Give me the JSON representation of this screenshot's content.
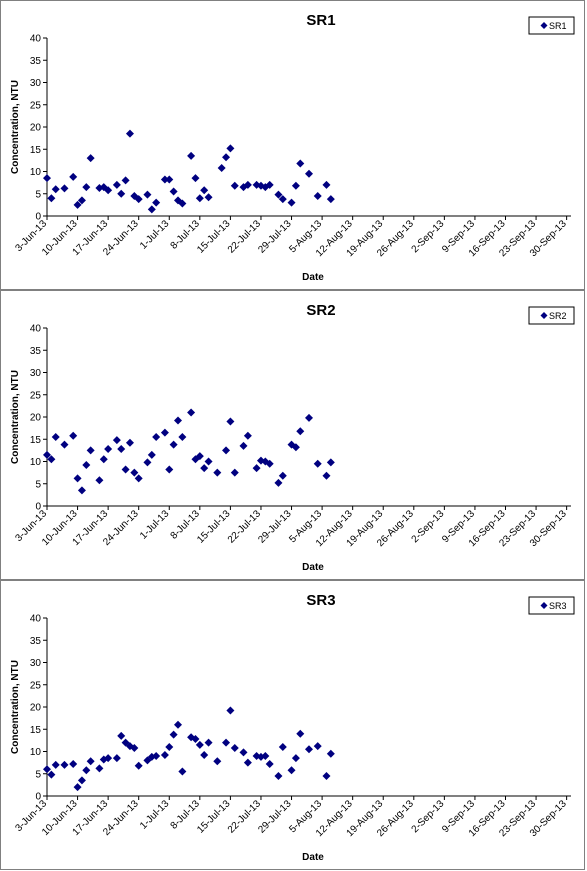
{
  "chart_data": [
    {
      "type": "scatter",
      "title": "SR1",
      "xlabel": "Date",
      "ylabel": "Concentration, NTU",
      "ylim": [
        0,
        40
      ],
      "yticks": [
        0,
        5,
        10,
        15,
        20,
        25,
        30,
        35,
        40
      ],
      "xlim": [
        "2013-06-03",
        "2013-10-01"
      ],
      "xtick_labels": [
        "3-Jun-13",
        "10-Jun-13",
        "17-Jun-13",
        "24-Jun-13",
        "1-Jul-13",
        "8-Jul-13",
        "15-Jul-13",
        "22-Jul-13",
        "29-Jul-13",
        "5-Aug-13",
        "12-Aug-13",
        "19-Aug-13",
        "26-Aug-13",
        "2-Sep-13",
        "9-Sep-13",
        "16-Sep-13",
        "23-Sep-13",
        "30-Sep-13"
      ],
      "legend_position": "top-right",
      "marker_color": "#000080",
      "series": [
        {
          "name": "SR1",
          "points": [
            [
              "2013-06-03",
              8.5
            ],
            [
              "2013-06-04",
              4.0
            ],
            [
              "2013-06-05",
              6.0
            ],
            [
              "2013-06-07",
              6.2
            ],
            [
              "2013-06-09",
              8.8
            ],
            [
              "2013-06-10",
              2.5
            ],
            [
              "2013-06-11",
              3.5
            ],
            [
              "2013-06-12",
              6.5
            ],
            [
              "2013-06-13",
              13.0
            ],
            [
              "2013-06-15",
              6.3
            ],
            [
              "2013-06-16",
              6.5
            ],
            [
              "2013-06-17",
              5.8
            ],
            [
              "2013-06-19",
              7.0
            ],
            [
              "2013-06-20",
              5.0
            ],
            [
              "2013-06-21",
              8.0
            ],
            [
              "2013-06-22",
              18.5
            ],
            [
              "2013-06-23",
              4.5
            ],
            [
              "2013-06-24",
              3.8
            ],
            [
              "2013-06-26",
              4.8
            ],
            [
              "2013-06-27",
              1.5
            ],
            [
              "2013-06-28",
              3.0
            ],
            [
              "2013-06-30",
              8.2
            ],
            [
              "2013-07-01",
              8.2
            ],
            [
              "2013-07-02",
              5.5
            ],
            [
              "2013-07-03",
              3.5
            ],
            [
              "2013-07-04",
              2.8
            ],
            [
              "2013-07-06",
              13.5
            ],
            [
              "2013-07-07",
              8.5
            ],
            [
              "2013-07-08",
              4.0
            ],
            [
              "2013-07-09",
              5.8
            ],
            [
              "2013-07-10",
              4.2
            ],
            [
              "2013-07-13",
              10.8
            ],
            [
              "2013-07-14",
              13.2
            ],
            [
              "2013-07-15",
              15.2
            ],
            [
              "2013-07-16",
              6.8
            ],
            [
              "2013-07-18",
              6.5
            ],
            [
              "2013-07-19",
              7.0
            ],
            [
              "2013-07-21",
              7.0
            ],
            [
              "2013-07-22",
              6.8
            ],
            [
              "2013-07-23",
              6.5
            ],
            [
              "2013-07-24",
              7.0
            ],
            [
              "2013-07-26",
              4.8
            ],
            [
              "2013-07-27",
              3.8
            ],
            [
              "2013-07-29",
              3.0
            ],
            [
              "2013-07-30",
              6.8
            ],
            [
              "2013-07-31",
              11.8
            ],
            [
              "2013-08-02",
              9.5
            ],
            [
              "2013-08-04",
              4.5
            ],
            [
              "2013-08-06",
              7.0
            ],
            [
              "2013-08-07",
              3.8
            ]
          ]
        }
      ]
    },
    {
      "type": "scatter",
      "title": "SR2",
      "xlabel": "Date",
      "ylabel": "Concentration, NTU",
      "ylim": [
        0,
        40
      ],
      "yticks": [
        0,
        5,
        10,
        15,
        20,
        25,
        30,
        35,
        40
      ],
      "xlim": [
        "2013-06-03",
        "2013-10-01"
      ],
      "xtick_labels": [
        "3-Jun-13",
        "10-Jun-13",
        "17-Jun-13",
        "24-Jun-13",
        "1-Jul-13",
        "8-Jul-13",
        "15-Jul-13",
        "22-Jul-13",
        "29-Jul-13",
        "5-Aug-13",
        "12-Aug-13",
        "19-Aug-13",
        "26-Aug-13",
        "2-Sep-13",
        "9-Sep-13",
        "16-Sep-13",
        "23-Sep-13",
        "30-Sep-13"
      ],
      "legend_position": "top-right",
      "marker_color": "#000080",
      "series": [
        {
          "name": "SR2",
          "points": [
            [
              "2013-06-03",
              11.5
            ],
            [
              "2013-06-04",
              10.5
            ],
            [
              "2013-06-05",
              15.5
            ],
            [
              "2013-06-07",
              13.8
            ],
            [
              "2013-06-09",
              15.8
            ],
            [
              "2013-06-10",
              6.2
            ],
            [
              "2013-06-11",
              3.5
            ],
            [
              "2013-06-12",
              9.2
            ],
            [
              "2013-06-13",
              12.5
            ],
            [
              "2013-06-15",
              5.8
            ],
            [
              "2013-06-16",
              10.5
            ],
            [
              "2013-06-17",
              12.8
            ],
            [
              "2013-06-19",
              14.8
            ],
            [
              "2013-06-20",
              12.8
            ],
            [
              "2013-06-21",
              8.2
            ],
            [
              "2013-06-22",
              14.2
            ],
            [
              "2013-06-23",
              7.5
            ],
            [
              "2013-06-24",
              6.2
            ],
            [
              "2013-06-26",
              9.8
            ],
            [
              "2013-06-27",
              11.5
            ],
            [
              "2013-06-28",
              15.5
            ],
            [
              "2013-06-30",
              16.5
            ],
            [
              "2013-07-01",
              8.2
            ],
            [
              "2013-07-02",
              13.8
            ],
            [
              "2013-07-03",
              19.2
            ],
            [
              "2013-07-04",
              15.5
            ],
            [
              "2013-07-06",
              21.0
            ],
            [
              "2013-07-07",
              10.5
            ],
            [
              "2013-07-08",
              11.2
            ],
            [
              "2013-07-09",
              8.5
            ],
            [
              "2013-07-10",
              10.0
            ],
            [
              "2013-07-12",
              7.5
            ],
            [
              "2013-07-14",
              12.5
            ],
            [
              "2013-07-15",
              19.0
            ],
            [
              "2013-07-16",
              7.5
            ],
            [
              "2013-07-18",
              13.5
            ],
            [
              "2013-07-19",
              15.8
            ],
            [
              "2013-07-21",
              8.5
            ],
            [
              "2013-07-22",
              10.2
            ],
            [
              "2013-07-23",
              10.0
            ],
            [
              "2013-07-24",
              9.5
            ],
            [
              "2013-07-26",
              5.2
            ],
            [
              "2013-07-27",
              6.8
            ],
            [
              "2013-07-29",
              13.8
            ],
            [
              "2013-07-30",
              13.2
            ],
            [
              "2013-07-31",
              16.8
            ],
            [
              "2013-08-02",
              19.8
            ],
            [
              "2013-08-04",
              9.5
            ],
            [
              "2013-08-06",
              6.8
            ],
            [
              "2013-08-07",
              9.8
            ]
          ]
        }
      ]
    },
    {
      "type": "scatter",
      "title": "SR3",
      "xlabel": "Date",
      "ylabel": "Concentration, NTU",
      "ylim": [
        0,
        40
      ],
      "yticks": [
        0,
        5,
        10,
        15,
        20,
        25,
        30,
        35,
        40
      ],
      "xlim": [
        "2013-06-03",
        "2013-10-01"
      ],
      "xtick_labels": [
        "3-Jun-13",
        "10-Jun-13",
        "17-Jun-13",
        "24-Jun-13",
        "1-Jul-13",
        "8-Jul-13",
        "15-Jul-13",
        "22-Jul-13",
        "29-Jul-13",
        "5-Aug-13",
        "12-Aug-13",
        "19-Aug-13",
        "26-Aug-13",
        "2-Sep-13",
        "9-Sep-13",
        "16-Sep-13",
        "23-Sep-13",
        "30-Sep-13"
      ],
      "legend_position": "top-right",
      "marker_color": "#000080",
      "series": [
        {
          "name": "SR3",
          "points": [
            [
              "2013-06-03",
              6.0
            ],
            [
              "2013-06-04",
              4.8
            ],
            [
              "2013-06-05",
              7.0
            ],
            [
              "2013-06-07",
              7.0
            ],
            [
              "2013-06-09",
              7.2
            ],
            [
              "2013-06-10",
              2.0
            ],
            [
              "2013-06-11",
              3.5
            ],
            [
              "2013-06-12",
              5.8
            ],
            [
              "2013-06-13",
              7.8
            ],
            [
              "2013-06-15",
              6.2
            ],
            [
              "2013-06-16",
              8.2
            ],
            [
              "2013-06-17",
              8.5
            ],
            [
              "2013-06-19",
              8.5
            ],
            [
              "2013-06-20",
              13.5
            ],
            [
              "2013-06-21",
              12.0
            ],
            [
              "2013-06-22",
              11.2
            ],
            [
              "2013-06-23",
              10.8
            ],
            [
              "2013-06-24",
              6.8
            ],
            [
              "2013-06-26",
              8.0
            ],
            [
              "2013-06-27",
              8.8
            ],
            [
              "2013-06-28",
              9.0
            ],
            [
              "2013-06-30",
              9.2
            ],
            [
              "2013-07-01",
              11.0
            ],
            [
              "2013-07-02",
              13.8
            ],
            [
              "2013-07-03",
              16.0
            ],
            [
              "2013-07-04",
              5.5
            ],
            [
              "2013-07-06",
              13.2
            ],
            [
              "2013-07-07",
              12.8
            ],
            [
              "2013-07-08",
              11.5
            ],
            [
              "2013-07-09",
              9.2
            ],
            [
              "2013-07-10",
              12.0
            ],
            [
              "2013-07-12",
              7.8
            ],
            [
              "2013-07-14",
              12.0
            ],
            [
              "2013-07-15",
              19.2
            ],
            [
              "2013-07-16",
              10.8
            ],
            [
              "2013-07-18",
              9.8
            ],
            [
              "2013-07-19",
              7.5
            ],
            [
              "2013-07-21",
              9.0
            ],
            [
              "2013-07-22",
              8.8
            ],
            [
              "2013-07-23",
              9.0
            ],
            [
              "2013-07-24",
              7.2
            ],
            [
              "2013-07-26",
              4.5
            ],
            [
              "2013-07-27",
              11.0
            ],
            [
              "2013-07-29",
              5.8
            ],
            [
              "2013-07-30",
              8.5
            ],
            [
              "2013-07-31",
              14.0
            ],
            [
              "2013-08-02",
              10.5
            ],
            [
              "2013-08-04",
              11.2
            ],
            [
              "2013-08-06",
              4.5
            ],
            [
              "2013-08-07",
              9.5
            ]
          ]
        }
      ]
    }
  ]
}
